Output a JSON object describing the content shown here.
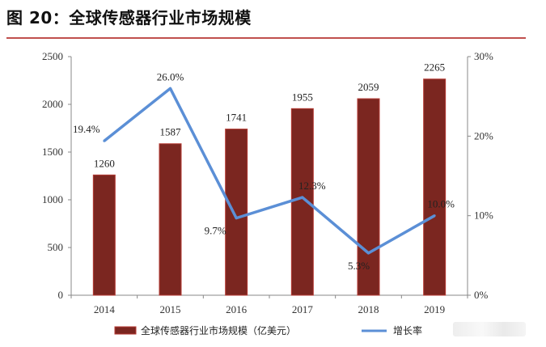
{
  "figure": {
    "title": "图 20：全球传感器行业市场规模"
  },
  "colors": {
    "bar": "#7b2620",
    "bar_edge": "#b53a33",
    "line": "#5b8fd6",
    "rule": "#c0504d"
  },
  "chart_data": {
    "type": "bar",
    "categories": [
      "2014",
      "2015",
      "2016",
      "2017",
      "2018",
      "2019"
    ],
    "series": [
      {
        "name": "全球传感器行业市场规模（亿美元）",
        "type": "bar",
        "axis": "left",
        "values": [
          1260,
          1587,
          1741,
          1955,
          2059,
          2265
        ],
        "labels": [
          "1260",
          "1587",
          "1741",
          "1955",
          "2059",
          "2265"
        ]
      },
      {
        "name": "增长率",
        "type": "line",
        "axis": "right",
        "values": [
          19.4,
          26.0,
          9.7,
          12.3,
          5.3,
          10.0
        ],
        "labels": [
          "19.4%",
          "26.0%",
          "9.7%",
          "12.3%",
          "5.3%",
          "10.0%"
        ]
      }
    ],
    "y_left": {
      "min": 0,
      "max": 2500,
      "ticks": [
        "0",
        "500",
        "1000",
        "1500",
        "2000",
        "2500"
      ]
    },
    "y_right": {
      "min": 0,
      "max": 30,
      "ticks": [
        "0%",
        "10%",
        "20%",
        "30%"
      ]
    },
    "grid": false,
    "legend_position": "bottom"
  }
}
